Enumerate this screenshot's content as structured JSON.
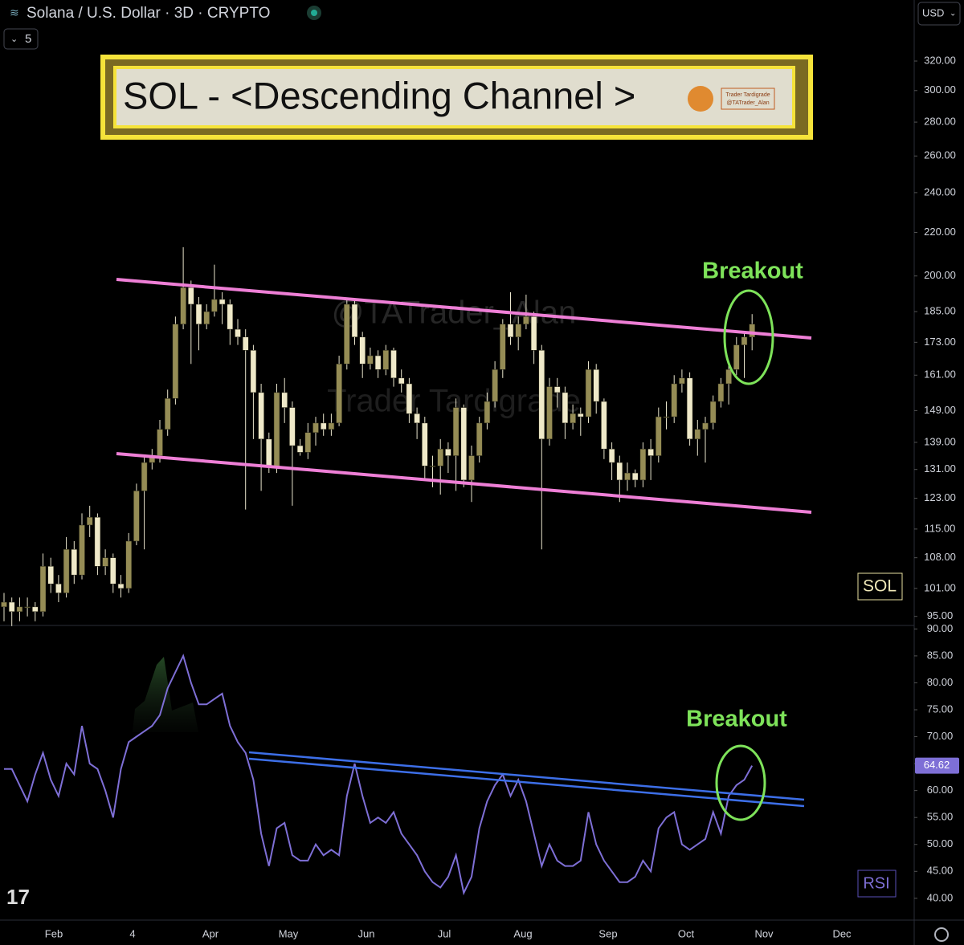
{
  "header": {
    "symbol": "Solana / U.S. Dollar · 3D · CRYPTO",
    "indicators": "5",
    "currency": "USD"
  },
  "banner": {
    "title": "SOL - <Descending Channel >",
    "brand": "Trader Tardigrade",
    "handle": "@TATrader_Alan"
  },
  "watermark": {
    "handle": "@TATrader_Alan",
    "brand": "Trader Tardigrade"
  },
  "chart_data": [
    {
      "type": "candlestick",
      "label": "SOL",
      "annotation": "Breakout",
      "log_scale": true,
      "up_color": "#958c55",
      "down_color": "#efe9c9",
      "x_labels": [
        "Feb",
        "4",
        "Apr",
        "May",
        "Jun",
        "Jul",
        "Aug",
        "Sep",
        "Oct",
        "Nov",
        "Dec"
      ],
      "ylim": [
        93.3,
        365.7
      ],
      "yticks": [
        {
          "value": 95,
          "label": "95.00"
        },
        {
          "value": 101,
          "label": "101.00"
        },
        {
          "value": 108,
          "label": "108.00"
        },
        {
          "value": 115,
          "label": "115.00"
        },
        {
          "value": 123,
          "label": "123.00"
        },
        {
          "value": 131,
          "label": "131.00"
        },
        {
          "value": 139,
          "label": "139.00"
        },
        {
          "value": 149,
          "label": "149.00"
        },
        {
          "value": 161,
          "label": "161.00"
        },
        {
          "value": 173,
          "label": "173.00"
        },
        {
          "value": 185,
          "label": "185.00"
        },
        {
          "value": 200,
          "label": "200.00"
        },
        {
          "value": 220,
          "label": "220.00"
        },
        {
          "value": 240,
          "label": "240.00"
        },
        {
          "value": 260,
          "label": "260.00"
        },
        {
          "value": 280,
          "label": "280.00"
        },
        {
          "value": 300,
          "label": "300.00"
        },
        {
          "value": 320,
          "label": "320.00"
        }
      ],
      "ohlc": [
        [
          97,
          100,
          94,
          98
        ],
        [
          98,
          99,
          93,
          96
        ],
        [
          96,
          99,
          94,
          97
        ],
        [
          97,
          99,
          95,
          97
        ],
        [
          97,
          98,
          94,
          96
        ],
        [
          96,
          109,
          95,
          106
        ],
        [
          106,
          108,
          100,
          102
        ],
        [
          102,
          104,
          98,
          100
        ],
        [
          100,
          113,
          99,
          110
        ],
        [
          110,
          112,
          102,
          104
        ],
        [
          104,
          119,
          103,
          116
        ],
        [
          116,
          121,
          113,
          118
        ],
        [
          118,
          119,
          104,
          106
        ],
        [
          106,
          110,
          104,
          108
        ],
        [
          108,
          109,
          100,
          102
        ],
        [
          102,
          104,
          99,
          101
        ],
        [
          101,
          114,
          100,
          112
        ],
        [
          112,
          127,
          111,
          125
        ],
        [
          125,
          135,
          110,
          133
        ],
        [
          133,
          137,
          131,
          135
        ],
        [
          135,
          146,
          133,
          143
        ],
        [
          143,
          156,
          141,
          153
        ],
        [
          153,
          183,
          151,
          180
        ],
        [
          180,
          213,
          178,
          195
        ],
        [
          195,
          198,
          165,
          188
        ],
        [
          188,
          191,
          170,
          180
        ],
        [
          180,
          188,
          178,
          185
        ],
        [
          185,
          205,
          183,
          190
        ],
        [
          190,
          193,
          180,
          188
        ],
        [
          188,
          190,
          172,
          178
        ],
        [
          178,
          182,
          172,
          175
        ],
        [
          175,
          178,
          120,
          170
        ],
        [
          170,
          172,
          140,
          155
        ],
        [
          155,
          158,
          125,
          140
        ],
        [
          140,
          142,
          130,
          132
        ],
        [
          132,
          158,
          130,
          155
        ],
        [
          155,
          160,
          145,
          150
        ],
        [
          150,
          152,
          121,
          138
        ],
        [
          138,
          140,
          135,
          136
        ],
        [
          136,
          145,
          134,
          142
        ],
        [
          142,
          147,
          138,
          145
        ],
        [
          145,
          148,
          141,
          143
        ],
        [
          143,
          148,
          141,
          145
        ],
        [
          145,
          168,
          144,
          165
        ],
        [
          165,
          190,
          163,
          188
        ],
        [
          188,
          190,
          172,
          175
        ],
        [
          175,
          177,
          160,
          165
        ],
        [
          165,
          171,
          163,
          168
        ],
        [
          168,
          170,
          160,
          163
        ],
        [
          163,
          172,
          161,
          170
        ],
        [
          170,
          171,
          157,
          160
        ],
        [
          160,
          163,
          155,
          158
        ],
        [
          158,
          160,
          145,
          148
        ],
        [
          148,
          150,
          140,
          145
        ],
        [
          145,
          147,
          128,
          132
        ],
        [
          132,
          135,
          126,
          132
        ],
        [
          132,
          140,
          124,
          137
        ],
        [
          137,
          139,
          130,
          135
        ],
        [
          135,
          153,
          125,
          150
        ],
        [
          150,
          151,
          126,
          128
        ],
        [
          128,
          138,
          122,
          135
        ],
        [
          135,
          147,
          133,
          145
        ],
        [
          145,
          155,
          143,
          152
        ],
        [
          152,
          166,
          150,
          163
        ],
        [
          163,
          182,
          160,
          180
        ],
        [
          180,
          193,
          172,
          175
        ],
        [
          175,
          183,
          170,
          180
        ],
        [
          180,
          192,
          178,
          183
        ],
        [
          183,
          185,
          165,
          170
        ],
        [
          170,
          172,
          110,
          140
        ],
        [
          140,
          160,
          138,
          157
        ],
        [
          157,
          160,
          150,
          155
        ],
        [
          155,
          157,
          140,
          145
        ],
        [
          145,
          151,
          143,
          148
        ],
        [
          148,
          150,
          141,
          147
        ],
        [
          147,
          166,
          145,
          163
        ],
        [
          163,
          165,
          148,
          152
        ],
        [
          152,
          153,
          134,
          137
        ],
        [
          137,
          139,
          128,
          133
        ],
        [
          133,
          135,
          122,
          128
        ],
        [
          128,
          133,
          125,
          130
        ],
        [
          130,
          131,
          126,
          128
        ],
        [
          128,
          139,
          126,
          137
        ],
        [
          137,
          140,
          128,
          135
        ],
        [
          135,
          150,
          133,
          147
        ],
        [
          147,
          152,
          143,
          147
        ],
        [
          147,
          161,
          145,
          158
        ],
        [
          158,
          163,
          155,
          160
        ],
        [
          160,
          162,
          138,
          140
        ],
        [
          140,
          146,
          135,
          143
        ],
        [
          143,
          147,
          133,
          145
        ],
        [
          145,
          154,
          143,
          152
        ],
        [
          152,
          160,
          150,
          158
        ],
        [
          158,
          165,
          151,
          163
        ],
        [
          163,
          175,
          161,
          172
        ],
        [
          172,
          177,
          160,
          175
        ],
        [
          175,
          184,
          170,
          180
        ]
      ]
    },
    {
      "type": "line",
      "label": "RSI",
      "annotation": "Breakout",
      "color": "#7e6fd6",
      "ylim": [
        36.1,
        90.5
      ],
      "yticks": [
        {
          "value": 40,
          "label": "40.00"
        },
        {
          "value": 45,
          "label": "45.00"
        },
        {
          "value": 50,
          "label": "50.00"
        },
        {
          "value": 55,
          "label": "55.00"
        },
        {
          "value": 60,
          "label": "60.00"
        },
        {
          "value": 65,
          "label": "65.00"
        },
        {
          "value": 70,
          "label": "70.00"
        },
        {
          "value": 75,
          "label": "75.00"
        },
        {
          "value": 80,
          "label": "80.00"
        },
        {
          "value": 85,
          "label": "85.00"
        },
        {
          "value": 90,
          "label": "90.00"
        }
      ],
      "values": [
        64,
        64,
        61,
        58,
        63,
        67,
        62,
        59,
        65,
        63,
        72,
        65,
        64,
        60,
        55,
        64,
        69,
        70,
        71,
        72,
        74,
        79,
        82,
        85,
        80,
        76,
        76,
        77,
        78,
        72,
        69,
        67,
        62,
        52,
        46,
        53,
        54,
        48,
        47,
        47,
        50,
        48,
        49,
        48,
        59,
        65,
        59,
        54,
        55,
        54,
        56,
        52,
        50,
        48,
        45,
        43,
        42,
        44,
        48,
        41,
        44,
        53,
        58,
        61,
        63,
        59,
        62,
        58,
        52,
        46,
        50,
        47,
        46,
        46,
        47,
        56,
        50,
        47,
        45,
        43,
        43,
        44,
        47,
        45,
        53,
        55,
        56,
        50,
        49,
        50,
        51,
        56,
        52,
        59,
        61,
        62,
        64.62
      ]
    }
  ]
}
